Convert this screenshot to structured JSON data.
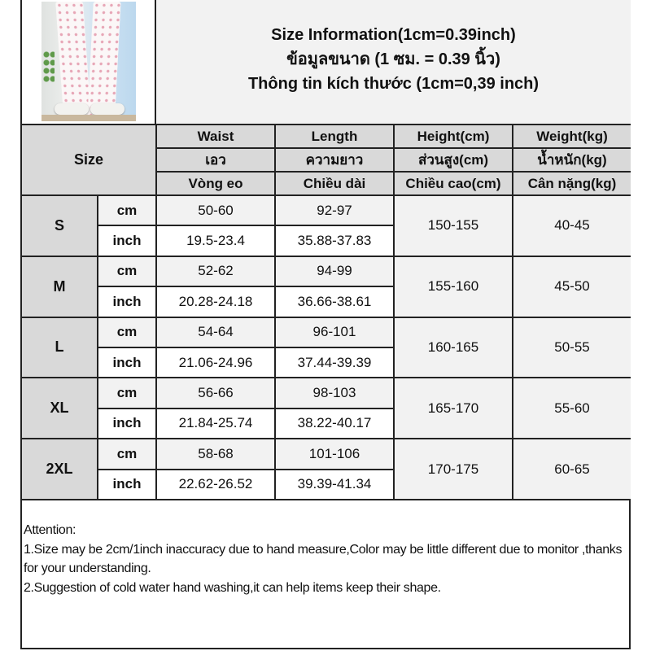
{
  "header": {
    "title_en": "Size Information(1cm=0.39inch)",
    "title_th": "ข้อมูลขนาด (1 ซม. = 0.39 นิ้ว)",
    "title_vi": "Thông tin kích thước (1cm=0,39 inch)"
  },
  "columns": {
    "size": "Size",
    "headers": [
      [
        "Waist",
        "เอว",
        "Vòng eo"
      ],
      [
        "Length",
        "ความยาว",
        "Chiều dài"
      ],
      [
        "Height(cm)",
        "ส่วนสูง(cm)",
        "Chiều cao(cm)"
      ],
      [
        "Weight(kg)",
        "น้ำหนัก(kg)",
        "Cân nặng(kg)"
      ]
    ]
  },
  "units": {
    "cm": "cm",
    "inch": "inch"
  },
  "rows": [
    {
      "size": "S",
      "waist_cm": "50-60",
      "length_cm": "92-97",
      "waist_inch": "19.5-23.4",
      "length_inch": "35.88-37.83",
      "height": "150-155",
      "weight": "40-45"
    },
    {
      "size": "M",
      "waist_cm": "52-62",
      "length_cm": "94-99",
      "waist_inch": "20.28-24.18",
      "length_inch": "36.66-38.61",
      "height": "155-160",
      "weight": "45-50"
    },
    {
      "size": "L",
      "waist_cm": "54-64",
      "length_cm": "96-101",
      "waist_inch": "21.06-24.96",
      "length_inch": "37.44-39.39",
      "height": "160-165",
      "weight": "50-55"
    },
    {
      "size": "XL",
      "waist_cm": "56-66",
      "length_cm": "98-103",
      "waist_inch": "21.84-25.74",
      "length_inch": "38.22-40.17",
      "height": "165-170",
      "weight": "55-60"
    },
    {
      "size": "2XL",
      "waist_cm": "58-68",
      "length_cm": "101-106",
      "waist_inch": "22.62-26.52",
      "length_inch": "39.39-41.34",
      "height": "170-175",
      "weight": "60-65"
    }
  ],
  "attention": {
    "label": "Attention:",
    "note1": "1.Size may be 2cm/1inch inaccuracy due to hand measure,Color may be little different due to monitor ,thanks for your understanding.",
    "note2": "2.Suggestion of cold water hand washing,it can help items keep their shape."
  },
  "colors": {
    "header_gray": "#d9d9d9",
    "light_gray": "#f2f2f2",
    "border": "#222222"
  }
}
